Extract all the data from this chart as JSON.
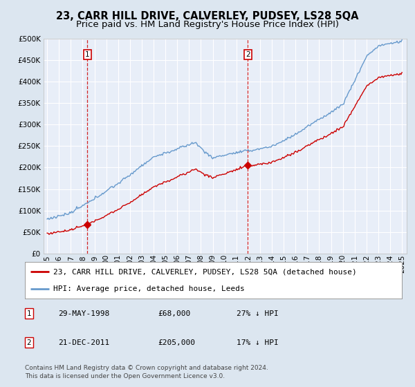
{
  "title": "23, CARR HILL DRIVE, CALVERLEY, PUDSEY, LS28 5QA",
  "subtitle": "Price paid vs. HM Land Registry's House Price Index (HPI)",
  "ylim": [
    0,
    500000
  ],
  "yticks": [
    0,
    50000,
    100000,
    150000,
    200000,
    250000,
    300000,
    350000,
    400000,
    450000,
    500000
  ],
  "ytick_labels": [
    "£0",
    "£50K",
    "£100K",
    "£150K",
    "£200K",
    "£250K",
    "£300K",
    "£350K",
    "£400K",
    "£450K",
    "£500K"
  ],
  "xmin": 1994.7,
  "xmax": 2025.4,
  "background_color": "#dce6f0",
  "plot_bg_color": "#e8eef8",
  "grid_color": "#ffffff",
  "hpi_color": "#6699cc",
  "price_color": "#cc0000",
  "marker1_x": 1998.41,
  "marker1_y": 68000,
  "marker2_x": 2011.97,
  "marker2_y": 205000,
  "legend_line1": "23, CARR HILL DRIVE, CALVERLEY, PUDSEY, LS28 5QA (detached house)",
  "legend_line2": "HPI: Average price, detached house, Leeds",
  "table_rows": [
    {
      "num": "1",
      "date": "29-MAY-1998",
      "price": "£68,000",
      "pct": "27% ↓ HPI"
    },
    {
      "num": "2",
      "date": "21-DEC-2011",
      "price": "£205,000",
      "pct": "17% ↓ HPI"
    }
  ],
  "footnote": "Contains HM Land Registry data © Crown copyright and database right 2024.\nThis data is licensed under the Open Government Licence v3.0.",
  "title_fontsize": 10.5,
  "subtitle_fontsize": 9.5,
  "tick_fontsize": 7.5,
  "legend_fontsize": 8,
  "table_fontsize": 8,
  "footnote_fontsize": 6.5
}
